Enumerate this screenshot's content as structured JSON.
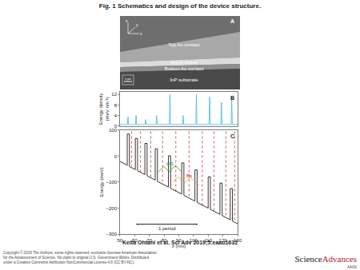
{
  "figure_title": "Fig. 1 Schematics and design of the device structure.",
  "panel_a": {
    "label": "A",
    "labels": [
      "Top Au contact",
      "Active region",
      "Bottom Au contact",
      "InP substrate"
    ],
    "axes": [
      "z",
      "x",
      "y"
    ],
    "scale_bar": "2 µm"
  },
  "chart_data": [
    {
      "type": "line",
      "panel": "B",
      "ylabel": [
        "Energy density",
        "(meV nm⁻¹)"
      ],
      "xlim": [
        50,
        130
      ],
      "ylim": [
        0,
        13
      ],
      "yticks": [
        0,
        4,
        8,
        12
      ],
      "tick_labels": "y",
      "series": [
        {
          "color": "#3fb6e0",
          "line_style": "solid",
          "x": [
            50,
            55.1,
            55.5,
            55.9,
            60.6,
            61,
            61.4,
            67.1,
            67.5,
            67.9,
            74.6,
            75,
            75.4,
            83.6,
            84,
            84.4,
            92.6,
            93,
            93.4,
            101.6,
            102,
            102.4,
            110.6,
            111,
            111.4,
            118.6,
            119,
            119.4,
            125.6,
            126,
            126.4,
            130
          ],
          "values": [
            0.6,
            0.6,
            3.5,
            0.6,
            0.6,
            4,
            0.6,
            0.6,
            2.5,
            0.6,
            0.6,
            4,
            0.6,
            0.6,
            12,
            0.6,
            0.6,
            4,
            0.6,
            0.6,
            12,
            0.6,
            0.6,
            11,
            0.6,
            0.6,
            9,
            0.6,
            0.6,
            11,
            0.6,
            0.6
          ]
        }
      ]
    },
    {
      "type": "line",
      "panel": "C",
      "xlabel": "z (nm)",
      "ylabel": "Energy (meV)",
      "xlim": [
        50,
        130
      ],
      "ylim": [
        -300,
        100
      ],
      "xticks": [
        50,
        60,
        70,
        80,
        90,
        100,
        110,
        120,
        130
      ],
      "yticks": [
        -300,
        -200,
        -100,
        0,
        100
      ],
      "series": [
        {
          "color": "#d62728",
          "line_style": "dot",
          "x": [
            58,
            58,
            null,
            64,
            64,
            null,
            71,
            71,
            null,
            79,
            79,
            null,
            88,
            88,
            null,
            97,
            97,
            null,
            106,
            106,
            null,
            114,
            114,
            null,
            122,
            122,
            null,
            128,
            128
          ],
          "values": [
            95,
            -40,
            null,
            95,
            -60,
            null,
            95,
            -80,
            null,
            95,
            -110,
            null,
            95,
            -135,
            null,
            95,
            -160,
            null,
            95,
            -190,
            null,
            95,
            -210,
            null,
            95,
            -235,
            null,
            95,
            -250
          ]
        },
        {
          "color": "#000000",
          "line_style": "solid",
          "x": [
            50,
            55,
            55,
            56.5,
            56.5,
            60.5,
            60.5,
            62,
            62,
            67,
            67,
            68.5,
            68.5,
            74,
            74,
            75.5,
            75.5,
            83,
            83,
            84.5,
            84.5,
            92,
            92,
            93.5,
            93.5,
            101,
            101,
            102.5,
            102.5,
            110,
            110,
            111.5,
            111.5,
            118,
            118,
            119.5,
            119.5,
            125,
            125,
            126.5,
            126.5,
            130
          ],
          "values": [
            -20,
            -35,
            85,
            85,
            -40,
            -52,
            68,
            68,
            -56,
            -71,
            49,
            49,
            -76,
            -92,
            28,
            28,
            -97,
            -119,
            1,
            1,
            -124,
            -146,
            -26,
            -26,
            -151,
            -173,
            -53,
            -53,
            -178,
            -200,
            -80,
            -80,
            -205,
            -224,
            -104,
            -104,
            -229,
            -245,
            -125,
            -125,
            -250,
            -260
          ]
        },
        {
          "color": "#2ca02c",
          "line_style": "solid",
          "x": [
            76,
            78,
            80,
            82,
            84,
            86,
            88,
            90,
            92
          ],
          "values": [
            -60,
            -50,
            -40,
            -52,
            -60,
            -45,
            -38,
            -50,
            -60
          ]
        },
        {
          "color": "#e8a23a",
          "line_style": "solid",
          "x": [
            86,
            88,
            90,
            92,
            94,
            96,
            98,
            100,
            102,
            104
          ],
          "values": [
            -100,
            -88,
            -80,
            -92,
            -104,
            -90,
            -82,
            -94,
            -104,
            -112
          ]
        }
      ],
      "annotations": [
        {
          "text": "LIS",
          "x": 84,
          "y": -30,
          "color": "#2ca02c"
        },
        {
          "text": "Bs",
          "x": 97,
          "y": -76,
          "color": "#d62728"
        }
      ],
      "period": {
        "text": "1 period",
        "start": 61,
        "end": 103,
        "y": -262
      }
    }
  ],
  "citation": "Keita Ohtani et al. Sci Adv 2019;5:eaau1632",
  "copyright": [
    "Copyright © 2019 The Authors, some rights reserved; exclusive licensee American Association",
    "for the Advancement of Science. No claim to original U.S. Government Works. Distributed",
    "under a Creative Commons Attribution NonCommercial License 4.0 (CC BY-NC)."
  ],
  "logo": {
    "parts": [
      "Science",
      "Advances"
    ],
    "publisher": "AAAS"
  }
}
